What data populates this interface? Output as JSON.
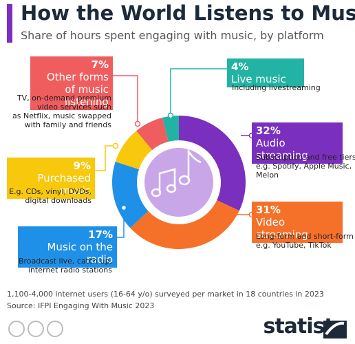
{
  "chart_data": {
    "type": "donut",
    "title": "How the World Listens to Music",
    "subtitle": "Share of hours spent engaging with music, by platform",
    "categories": [
      "Audio streaming",
      "Video streaming",
      "Music on the radio",
      "Purchased music",
      "Other forms of music listening",
      "Live music"
    ],
    "values": [
      32,
      31,
      17,
      9,
      7,
      4
    ],
    "value_labels": [
      "32%",
      "31%",
      "17%",
      "9%",
      "7%",
      "4%"
    ],
    "colors": [
      "#7b2fbe",
      "#f5712a",
      "#1e90e8",
      "#f7c80c",
      "#f05d5e",
      "#22b3a4"
    ],
    "descriptions": [
      [
        "Subscription and free tiers",
        "e.g. Spotify, Apple Music,",
        "Melon"
      ],
      [
        "Long-form and short-form",
        "e.g. YouTube, TikTok"
      ],
      [
        "Broadcast live, catch up,",
        "internet radio stations"
      ],
      [
        "E.g. CDs, vinyl, DVDs,",
        "digital downloads"
      ],
      [
        "TV, on-demand premium",
        "video services such",
        "as Netflix, music swapped",
        "with family and friends"
      ],
      [
        "Including livestreaming"
      ]
    ],
    "note": "1,100-4,000 internet users (16-64 y/o) surveyed per market in 18 countries in 2023",
    "source": "Source: IFPI Engaging With Music 2023",
    "brand": "statista"
  }
}
